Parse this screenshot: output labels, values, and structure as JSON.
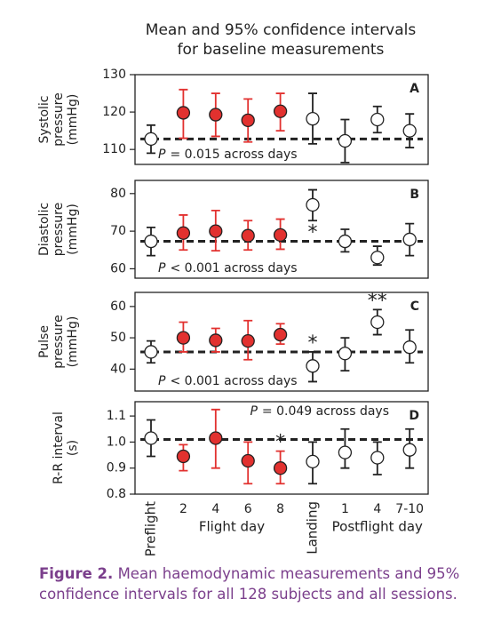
{
  "title": [
    "Mean and 95% confidence intervals",
    "for baseline measurements"
  ],
  "x_axis": {
    "categories": [
      "Preflight",
      "2",
      "4",
      "6",
      "8",
      "Landing",
      "1",
      "4",
      "7-10"
    ],
    "category_colors": [
      "#222222",
      "#e2312f",
      "#e2312f",
      "#e2312f",
      "#e2312f",
      "#222222",
      "#222222",
      "#222222",
      "#222222"
    ],
    "marker_fills": [
      "#ffffff",
      "#e2312f",
      "#e2312f",
      "#e2312f",
      "#e2312f",
      "#ffffff",
      "#ffffff",
      "#ffffff",
      "#ffffff"
    ],
    "groups": [
      {
        "label": "Flight day",
        "color": "#e2312f",
        "from": 1,
        "to": 4
      },
      {
        "label": "Postflight day",
        "color": "#222222",
        "from": 6,
        "to": 8
      }
    ]
  },
  "chart_data": [
    {
      "type": "errorbar",
      "panel": "A",
      "ylabel": [
        "Systolic",
        "pressure",
        "(mmHg)"
      ],
      "ylim": [
        106,
        130
      ],
      "yticks": [
        110,
        120,
        130
      ],
      "values": [
        112.8,
        119.8,
        119.3,
        117.8,
        120.2,
        118.2,
        112.3,
        118,
        115
      ],
      "lower": [
        109,
        113,
        113.5,
        112,
        115,
        111.5,
        106.5,
        114.5,
        110.5
      ],
      "upper": [
        116.5,
        126,
        125,
        123.5,
        125,
        125,
        118,
        121.5,
        119.5
      ],
      "baseline": 112.8,
      "annotation": {
        "symbol": "P",
        "text": "= 0.015 across days",
        "corner": "bottom-left"
      },
      "stars": []
    },
    {
      "type": "errorbar",
      "panel": "B",
      "ylabel": [
        "Diastolic",
        "pressure",
        "(mmHg)"
      ],
      "ylim": [
        57.5,
        83.5
      ],
      "yticks": [
        60,
        70,
        80
      ],
      "values": [
        67.3,
        69.5,
        70,
        68.8,
        69,
        77,
        67.3,
        63,
        67.8
      ],
      "lower": [
        63.5,
        65,
        64.8,
        65,
        65.2,
        72.8,
        64.5,
        61,
        63.5
      ],
      "upper": [
        71,
        74.3,
        75.5,
        72.8,
        73.2,
        81,
        70.5,
        66,
        72
      ],
      "baseline": 67.3,
      "annotation": {
        "symbol": "P",
        "text": "< 0.001 across days",
        "corner": "bottom-left"
      },
      "stars": [
        {
          "index": 5,
          "label": "*",
          "position": "below"
        }
      ]
    },
    {
      "type": "errorbar",
      "panel": "C",
      "ylabel": [
        "Pulse",
        "pressure",
        "(mmHg)"
      ],
      "ylim": [
        33,
        64.5
      ],
      "yticks": [
        40,
        50,
        60
      ],
      "values": [
        45.5,
        50,
        49.2,
        49,
        51,
        41,
        45,
        55,
        47
      ],
      "lower": [
        42,
        45.5,
        45.5,
        43,
        48,
        36,
        39.5,
        51,
        42
      ],
      "upper": [
        49,
        55,
        53,
        55.5,
        54.5,
        45.5,
        50,
        59,
        52.5
      ],
      "baseline": 45.5,
      "annotation": {
        "symbol": "P",
        "text": "< 0.001 across days",
        "corner": "bottom-left"
      },
      "stars": [
        {
          "index": 5,
          "label": "*",
          "position": "above"
        },
        {
          "index": 7,
          "label": "**",
          "position": "above"
        }
      ]
    },
    {
      "type": "errorbar",
      "panel": "D",
      "ylabel": [
        "R-R interval",
        "(s)"
      ],
      "ylim": [
        0.8,
        1.155
      ],
      "yticks": [
        0.8,
        0.9,
        {
          "value": 1,
          "label": "1.0"
        },
        1.1
      ],
      "values": [
        1.015,
        0.945,
        1.015,
        0.928,
        0.9,
        0.925,
        0.96,
        0.94,
        0.97
      ],
      "lower": [
        0.945,
        0.89,
        0.9,
        0.84,
        0.84,
        0.84,
        0.9,
        0.875,
        0.9
      ],
      "upper": [
        1.085,
        0.99,
        1.125,
        1.0,
        0.965,
        1.0,
        1.05,
        1.0,
        1.05
      ],
      "baseline": 1.01,
      "annotation": {
        "symbol": "P",
        "text": "= 0.049 across days",
        "corner": "top-right"
      },
      "stars": [
        {
          "index": 4,
          "label": "*",
          "position": "above"
        }
      ]
    }
  ],
  "caption": {
    "label": "Figure 2.",
    "text": "Mean haemodynamic measurements and 95% confidence intervals for all 128 subjects and all sessions."
  }
}
